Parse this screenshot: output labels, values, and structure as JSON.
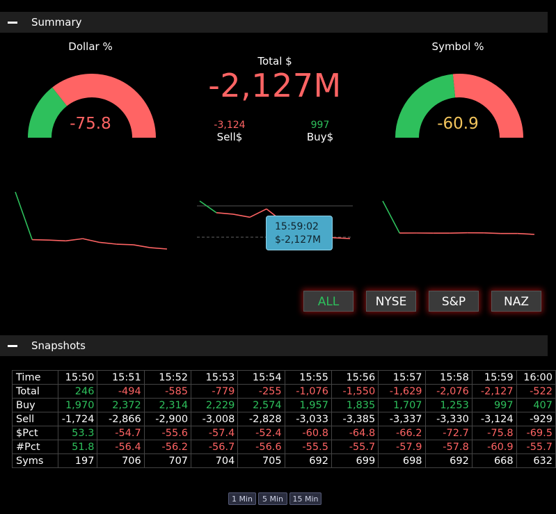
{
  "summary": {
    "header_title": "Summary",
    "dollar_gauge": {
      "title": "Dollar %",
      "value": "-75.8",
      "value_color": "#ff6464",
      "level_pct": 12
    },
    "symbol_gauge": {
      "title": "Symbol %",
      "value": "-60.9",
      "value_color": "#f3c55c",
      "level_pct": 19.5
    },
    "total": {
      "label": "Total $",
      "value": "-2,127M"
    },
    "sell": {
      "value": "-3,124",
      "label": "Sell$"
    },
    "buy": {
      "value": "997",
      "label": "Buy$"
    },
    "tooltip": {
      "time": "15:59:02",
      "value": "$-2,127M"
    }
  },
  "sparklines": {
    "dollar_pct": [
      53.3,
      -54.7,
      -55.6,
      -57.4,
      -52.4,
      -60.8,
      -64.8,
      -66.2,
      -72.7,
      -75.8,
      -69.5
    ],
    "total": [
      246,
      -494,
      -585,
      -779,
      -255,
      -1076,
      -1550,
      -1629,
      -2076,
      -2127,
      -522
    ],
    "symbol_pct": [
      51.8,
      -56.4,
      -56.2,
      -56.7,
      -56.6,
      -55.5,
      -55.7,
      -57.9,
      -57.8,
      -60.9,
      -55.7
    ]
  },
  "exchange_buttons": [
    {
      "label": "ALL",
      "active": true
    },
    {
      "label": "NYSE",
      "active": false
    },
    {
      "label": "S&P",
      "active": false
    },
    {
      "label": "NAZ",
      "active": false
    }
  ],
  "snapshots": {
    "header_title": "Snapshots",
    "columns": [
      "Time",
      "15:50",
      "15:51",
      "15:52",
      "15:53",
      "15:54",
      "15:55",
      "15:56",
      "15:57",
      "15:58",
      "15:59",
      "16:00"
    ],
    "rows": [
      {
        "label": "Total",
        "values": [
          "246",
          "-494",
          "-585",
          "-779",
          "-255",
          "-1,076",
          "-1,550",
          "-1,629",
          "-2,076",
          "-2,127",
          "-522"
        ]
      },
      {
        "label": "Buy",
        "values": [
          "1,970",
          "2,372",
          "2,314",
          "2,229",
          "2,574",
          "1,957",
          "1,835",
          "1,707",
          "1,253",
          "997",
          "407"
        ]
      },
      {
        "label": "Sell",
        "values": [
          "-1,724",
          "-2,866",
          "-2,900",
          "-3,008",
          "-2,828",
          "-3,033",
          "-3,385",
          "-3,337",
          "-3,330",
          "-3,124",
          "-929"
        ]
      },
      {
        "label": "$Pct",
        "values": [
          "53.3",
          "-54.7",
          "-55.6",
          "-57.4",
          "-52.4",
          "-60.8",
          "-64.8",
          "-66.2",
          "-72.7",
          "-75.8",
          "-69.5"
        ]
      },
      {
        "label": "#Pct",
        "values": [
          "51.8",
          "-56.4",
          "-56.2",
          "-56.7",
          "-56.6",
          "-55.5",
          "-55.7",
          "-57.9",
          "-57.8",
          "-60.9",
          "-55.7"
        ]
      },
      {
        "label": "Syms",
        "values": [
          "197",
          "706",
          "707",
          "704",
          "705",
          "692",
          "699",
          "698",
          "692",
          "668",
          "632"
        ]
      }
    ]
  },
  "timeframes": [
    "1 Min",
    "5 Min",
    "15 Min"
  ],
  "colors": {
    "positive": "#2ec05c",
    "negative": "#ff6464",
    "neutral": "#ffffff",
    "warn": "#f3c55c"
  }
}
